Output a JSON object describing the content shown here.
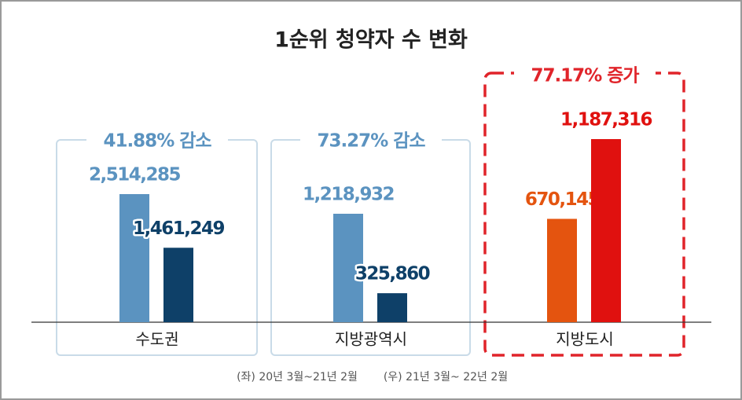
{
  "chart_data": {
    "type": "bar",
    "title": "1순위 청약자 수 변화",
    "categories": [
      "수도권",
      "지방광역시",
      "지방도시"
    ],
    "series": [
      {
        "name": "(좌) 20년 3월~21년 2월",
        "colors": [
          "#5b93c0",
          "#5b93c0",
          "#e4540f"
        ],
        "values": [
          2514285,
          1218932,
          670145
        ],
        "value_labels": [
          "2,514,285",
          "1,218,932",
          "670,145"
        ]
      },
      {
        "name": "(우) 21년 3월~ 22년 2월",
        "colors": [
          "#0e4068",
          "#0e4068",
          "#e0110f"
        ],
        "values": [
          1461249,
          325860,
          1187316
        ],
        "value_labels": [
          "1,461,249",
          "325,860",
          "1,187,316"
        ]
      }
    ],
    "annotations": [
      "41.88% 감소",
      "73.27% 감소",
      "77.17% 증가"
    ]
  }
}
